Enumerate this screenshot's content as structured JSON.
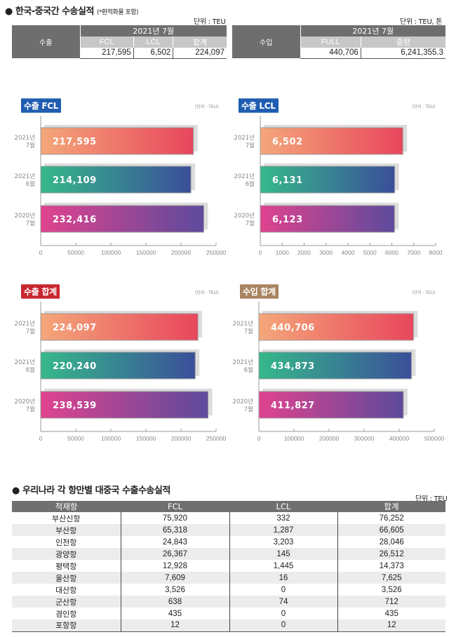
{
  "section1": {
    "title": "● 한국-중국간 수송실적",
    "note": "(*환적화물 포함)",
    "export_table": {
      "unit": "단위 : TEU",
      "row_header": "수출",
      "period": "2021년 7월",
      "columns": [
        "FCL",
        "LCL",
        "합계"
      ],
      "values": [
        "217,595",
        "6,502",
        "224,097"
      ]
    },
    "import_table": {
      "unit": "단위 : TEU, 톤",
      "row_header": "수입",
      "period": "2021년 7월",
      "columns": [
        "FULL",
        "중량"
      ],
      "values": [
        "440,706",
        "6,241,355.3"
      ]
    }
  },
  "colors": {
    "gradient_1": [
      "#f4a77a",
      "#e8465c"
    ],
    "gradient_2": [
      "#36b98a",
      "#3a4f9a"
    ],
    "gradient_3": [
      "#e0438f",
      "#5d4a9c"
    ],
    "badge_export_fcl": "#1f5db0",
    "badge_export_lcl": "#1f5db0",
    "badge_export_total": "#c8262f",
    "badge_import_total": "#a98460",
    "shadow": "#dcdcdc"
  },
  "chart_data": [
    {
      "type": "bar",
      "orientation": "horizontal",
      "badge": "수출 FCL",
      "unit": "(단위 : TEU)",
      "categories": [
        [
          "2021년",
          "7월"
        ],
        [
          "2021년",
          "6월"
        ],
        [
          "2020년",
          "7월"
        ]
      ],
      "values": [
        217595,
        214109,
        232416
      ],
      "labels": [
        "217,595",
        "214,109",
        "232,416"
      ],
      "xlim": [
        0,
        250000
      ],
      "ticks": [
        0,
        50000,
        100000,
        150000,
        200000,
        250000
      ],
      "tick_labels": [
        "0",
        "50000",
        "100000",
        "150000",
        "200000",
        "250000"
      ],
      "grid": false
    },
    {
      "type": "bar",
      "orientation": "horizontal",
      "badge": "수출 LCL",
      "unit": "(단위 : TEU)",
      "categories": [
        [
          "2021년",
          "7월"
        ],
        [
          "2021년",
          "6월"
        ],
        [
          "2020년",
          "7월"
        ]
      ],
      "values": [
        6502,
        6131,
        6123
      ],
      "labels": [
        "6,502",
        "6,131",
        "6,123"
      ],
      "xlim": [
        0,
        8000
      ],
      "ticks": [
        0,
        1000,
        2000,
        3000,
        4000,
        5000,
        6000,
        7000,
        8000
      ],
      "tick_labels": [
        "0",
        "1000",
        "2000",
        "3000",
        "4000",
        "5000",
        "6000",
        "7000",
        "8000"
      ],
      "grid": false
    },
    {
      "type": "bar",
      "orientation": "horizontal",
      "badge": "수출 합계",
      "unit": "(단위 : TEU)",
      "categories": [
        [
          "2021년",
          "7월"
        ],
        [
          "2021년",
          "6월"
        ],
        [
          "2020년",
          "7월"
        ]
      ],
      "values": [
        224097,
        220240,
        238539
      ],
      "labels": [
        "224,097",
        "220,240",
        "238,539"
      ],
      "xlim": [
        0,
        250000
      ],
      "ticks": [
        0,
        50000,
        100000,
        150000,
        200000,
        250000
      ],
      "tick_labels": [
        "0",
        "50000",
        "100000",
        "150000",
        "200000",
        "250000"
      ],
      "grid": false
    },
    {
      "type": "bar",
      "orientation": "horizontal",
      "badge": "수입 합계",
      "unit": "(단위 : TEU)",
      "categories": [
        [
          "2021년",
          "7월"
        ],
        [
          "2021년",
          "6월"
        ],
        [
          "2020년",
          "7월"
        ]
      ],
      "values": [
        440706,
        434873,
        411827
      ],
      "labels": [
        "440,706",
        "434,873",
        "411,827"
      ],
      "xlim": [
        0,
        500000
      ],
      "ticks": [
        0,
        100000,
        200000,
        300000,
        400000,
        500000
      ],
      "tick_labels": [
        "0",
        "100000",
        "200000",
        "300000",
        "400000",
        "500000"
      ],
      "grid": false
    }
  ],
  "section2": {
    "title": "● 우리나라 각 항만별 대중국 수출수송실적",
    "unit": "단위 : TEU",
    "columns": [
      "적재항",
      "FCL",
      "LCL",
      "합계"
    ],
    "rows": [
      [
        "부산신항",
        "75,920",
        "332",
        "76,252"
      ],
      [
        "부산항",
        "65,318",
        "1,287",
        "66,605"
      ],
      [
        "인천항",
        "24,843",
        "3,203",
        "28,046"
      ],
      [
        "광양항",
        "26,367",
        "145",
        "26,512"
      ],
      [
        "평택항",
        "12,928",
        "1,445",
        "14,373"
      ],
      [
        "울산항",
        "7,609",
        "16",
        "7,625"
      ],
      [
        "대산항",
        "3,526",
        "0",
        "3,526"
      ],
      [
        "군산항",
        "638",
        "74",
        "712"
      ],
      [
        "경인항",
        "435",
        "0",
        "435"
      ],
      [
        "포항항",
        "12",
        "0",
        "12"
      ]
    ]
  }
}
